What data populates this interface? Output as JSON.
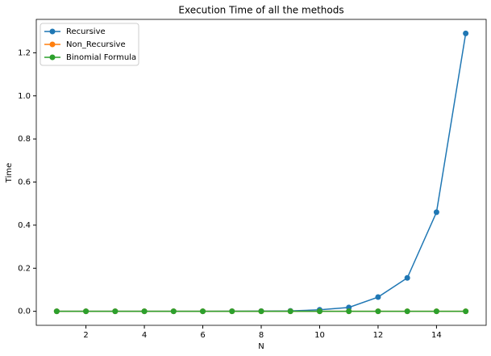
{
  "chart_data": {
    "type": "line",
    "title": "Execution Time of all the methods",
    "xlabel": "N",
    "ylabel": "Time",
    "x": [
      1,
      2,
      3,
      4,
      5,
      6,
      7,
      8,
      9,
      10,
      11,
      12,
      13,
      14,
      15
    ],
    "series": [
      {
        "name": "Recursive",
        "color": "#1f77b4",
        "values": [
          0,
          0,
          0,
          0,
          0,
          0,
          0.0005,
          0.001,
          0.002,
          0.007,
          0.018,
          0.066,
          0.155,
          0.46,
          1.29
        ]
      },
      {
        "name": "Non_Recursive",
        "color": "#ff7f0e",
        "values": [
          0,
          0,
          0,
          0,
          0,
          0,
          0,
          0,
          0,
          0,
          0,
          0,
          0,
          0,
          0
        ]
      },
      {
        "name": "Binomial Formula",
        "color": "#2ca02c",
        "values": [
          0,
          0,
          0,
          0,
          0,
          0,
          0,
          0,
          0,
          0,
          0,
          0,
          0,
          0,
          0
        ]
      }
    ],
    "xlim": [
      0.3,
      15.7
    ],
    "xticks": [
      2,
      4,
      6,
      8,
      10,
      12,
      14
    ],
    "ylim": [
      -0.065,
      1.355
    ],
    "yticks": [
      {
        "value": 0,
        "label": "0.0"
      },
      0.2,
      0.4,
      0.6,
      0.8,
      {
        "value": 1,
        "label": "1.0"
      },
      1.2
    ],
    "legend": "upper left"
  }
}
